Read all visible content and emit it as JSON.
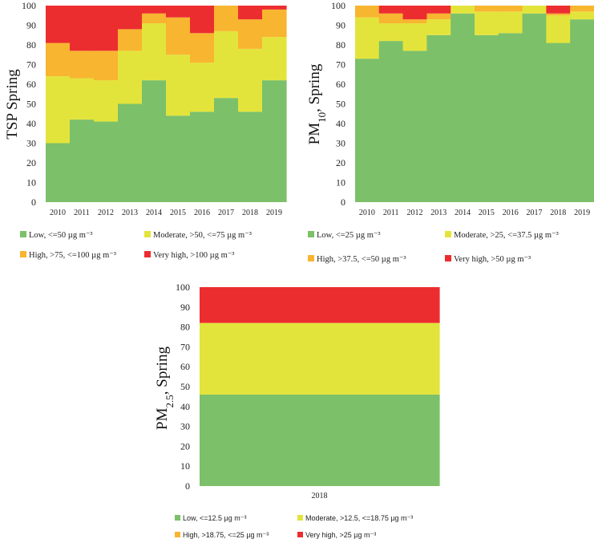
{
  "colors": {
    "low": "#7cc069",
    "moderate": "#e3e43b",
    "high": "#f8b52f",
    "very_high": "#ec2d30"
  },
  "chart_data": [
    {
      "type": "bar",
      "stacked": true,
      "title": "",
      "ylabel": "TSP Spring",
      "ylim": [
        0,
        100
      ],
      "yticks": [
        "0",
        "10",
        "20",
        "30",
        "40",
        "50",
        "60",
        "70",
        "80",
        "90",
        "100"
      ],
      "categories": [
        "2010",
        "2011",
        "2012",
        "2013",
        "2014",
        "2015",
        "2016",
        "2017",
        "2018",
        "2019"
      ],
      "series": [
        {
          "name": "Low, <=50 µg m⁻³",
          "key": "low",
          "values": [
            30,
            42,
            41,
            50,
            62,
            44,
            46,
            53,
            46,
            62
          ]
        },
        {
          "name": "Moderate, >50, <=75 µg m⁻³",
          "key": "moderate",
          "values": [
            34,
            21,
            21,
            27,
            29,
            31,
            25,
            34,
            32,
            22
          ]
        },
        {
          "name": "High, >75, <=100 µg m⁻³",
          "key": "high",
          "values": [
            17,
            14,
            15,
            11,
            5,
            19,
            15,
            13,
            15,
            14
          ]
        },
        {
          "name": "Very high, >100 µg m⁻³",
          "key": "very_high",
          "values": [
            19,
            23,
            23,
            12,
            4,
            6,
            14,
            0,
            7,
            2
          ]
        }
      ],
      "legend_position": "bottom"
    },
    {
      "type": "bar",
      "stacked": true,
      "title": "",
      "ylabel_main": "PM",
      "ylabel_sub": "10",
      "ylabel_tail": ", Spring",
      "ylim": [
        0,
        100
      ],
      "yticks": [
        "0",
        "10",
        "20",
        "30",
        "40",
        "50",
        "60",
        "70",
        "80",
        "90",
        "100"
      ],
      "categories": [
        "2010",
        "2011",
        "2012",
        "2013",
        "2014",
        "2015",
        "2016",
        "2017",
        "2018",
        "2019"
      ],
      "series": [
        {
          "name": "Low, <=25 µg m⁻³",
          "key": "low",
          "values": [
            73,
            82,
            77,
            85,
            96,
            85,
            86,
            96,
            81,
            93
          ]
        },
        {
          "name": "Moderate, >25, <=37.5 µg m⁻³",
          "key": "moderate",
          "values": [
            21,
            9,
            14,
            8,
            4,
            12,
            11,
            4,
            14,
            4
          ]
        },
        {
          "name": "High, >37.5, <=50 µg m⁻³",
          "key": "high",
          "values": [
            6,
            5,
            2,
            3,
            0,
            3,
            3,
            0,
            1,
            3
          ]
        },
        {
          "name": "Very high, >50 µg m⁻³",
          "key": "very_high",
          "values": [
            0,
            4,
            7,
            4,
            0,
            0,
            0,
            0,
            4,
            0
          ]
        }
      ],
      "legend_position": "bottom"
    },
    {
      "type": "bar",
      "stacked": true,
      "title": "",
      "ylabel_main": "PM",
      "ylabel_sub": "2.5",
      "ylabel_tail": ", Spring",
      "ylim": [
        0,
        100
      ],
      "yticks": [
        "0",
        "10",
        "20",
        "30",
        "40",
        "50",
        "60",
        "70",
        "80",
        "90",
        "100"
      ],
      "categories": [
        "2018"
      ],
      "series": [
        {
          "name": "Low, <=12.5 µg m⁻³",
          "key": "low",
          "values": [
            46
          ]
        },
        {
          "name": "Moderate, >12.5, <=18.75 µg m⁻³",
          "key": "moderate",
          "values": [
            36
          ]
        },
        {
          "name": "High, >18.75, <=25 µg m⁻³",
          "key": "high",
          "values": [
            0
          ]
        },
        {
          "name": "Very high, >25 µg m⁻³",
          "key": "very_high",
          "values": [
            18
          ]
        }
      ],
      "legend_position": "bottom"
    }
  ]
}
